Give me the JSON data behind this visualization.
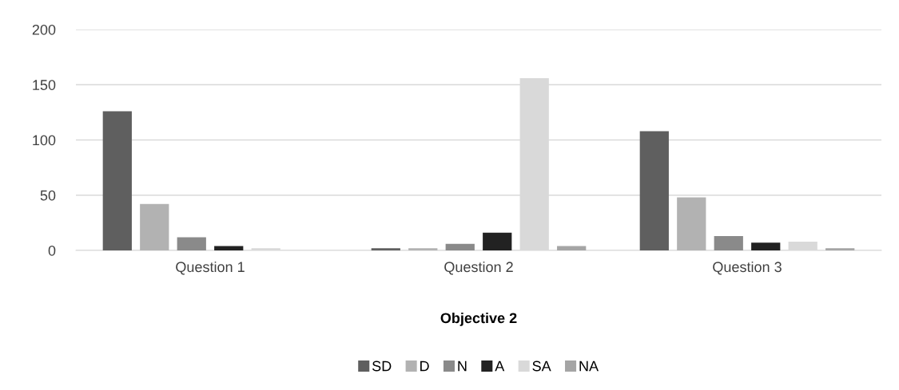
{
  "chart_data": {
    "type": "bar",
    "xlabel": "Objective 2",
    "categories": [
      "Question 1",
      "Question 2",
      "Question 3"
    ],
    "series": [
      {
        "name": "SD",
        "color": "#5f5f5f",
        "values": [
          126,
          2,
          108
        ]
      },
      {
        "name": "D",
        "color": "#b2b2b2",
        "values": [
          42,
          2,
          48
        ]
      },
      {
        "name": "N",
        "color": "#8a8a8a",
        "values": [
          12,
          6,
          13
        ]
      },
      {
        "name": "A",
        "color": "#222222",
        "values": [
          4,
          16,
          7
        ]
      },
      {
        "name": "SA",
        "color": "#d9d9d9",
        "values": [
          2,
          156,
          8
        ]
      },
      {
        "name": "NA",
        "color": "#a5a5a5",
        "values": [
          0,
          4,
          2
        ]
      }
    ],
    "ylim": [
      0,
      200
    ],
    "yticks": [
      0,
      50,
      100,
      150,
      200
    ],
    "grid": "y",
    "legend": "bottom"
  }
}
